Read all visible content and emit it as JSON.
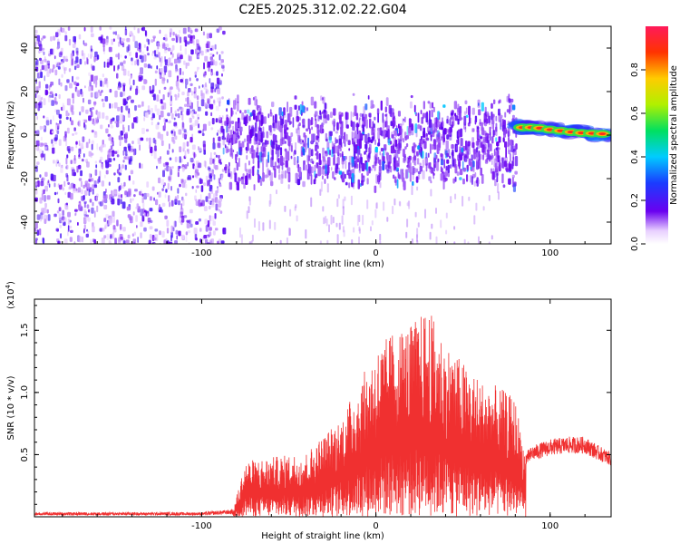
{
  "title": "C2E5.2025.312.02.22.G04",
  "colors": {
    "snr_line": "#f03030",
    "spec_low": "#d9b3ff",
    "spec_mid": "#6a00f0",
    "spec_high": "#ff1a00"
  },
  "chart_data": [
    {
      "type": "heatmap",
      "xlabel": "Height of straight line (km)",
      "ylabel": "Frequency (Hz)",
      "xlim": [
        -196,
        135
      ],
      "ylim": [
        -50,
        50
      ],
      "xticks": [
        "-100",
        "0",
        "100"
      ],
      "xtick_values": [
        -100,
        0,
        100
      ],
      "yticks": [
        "-40",
        "-20",
        "0",
        "20",
        "40"
      ],
      "ytick_values": [
        -40,
        -20,
        0,
        20,
        40
      ],
      "colorbar": {
        "label": "Normalized spectral amplitude",
        "range": [
          0,
          1
        ],
        "ticks": [
          "0.0",
          "0.2",
          "0.4",
          "0.6",
          "0.8"
        ],
        "tick_values": [
          0.0,
          0.2,
          0.4,
          0.6,
          0.8
        ]
      },
      "regions": [
        {
          "x_range": [
            -196,
            -88
          ],
          "freq_spread": 50,
          "amplitude": 0.15,
          "description_level": "noise"
        },
        {
          "x_range": [
            -88,
            80
          ],
          "freq_spread": 22,
          "amplitude": 0.25
        },
        {
          "x_range": [
            80,
            135
          ],
          "freq_center_start": 4,
          "freq_center_end": 0,
          "amplitude": 0.95
        }
      ]
    },
    {
      "type": "line",
      "xlabel": "Height of straight line (km)",
      "ylabel": "SNR (10 * v/v)",
      "scale_label": "(x10",
      "scale_exp": "4",
      "xlim": [
        -196,
        135
      ],
      "ylim": [
        0,
        1.75
      ],
      "xticks": [
        "-100",
        "0",
        "100"
      ],
      "xtick_values": [
        -100,
        0,
        100
      ],
      "yticks": [
        "0.5",
        "1.0",
        "1.5"
      ],
      "ytick_values": [
        0.5,
        1.0,
        1.5
      ],
      "series": [
        {
          "name": "SNR",
          "envelope_x": [
            -196,
            -100,
            -82,
            -75,
            -60,
            -40,
            -20,
            0,
            10,
            20,
            30,
            40,
            50,
            60,
            70,
            80,
            86,
            90,
            100,
            110,
            120,
            128,
            135
          ],
          "envelope_y": [
            0.03,
            0.03,
            0.05,
            0.45,
            0.48,
            0.52,
            0.8,
            1.35,
            1.5,
            1.55,
            1.68,
            1.4,
            1.25,
            1.1,
            1.05,
            0.95,
            0.5,
            0.55,
            0.6,
            0.62,
            0.62,
            0.55,
            0.5
          ]
        }
      ]
    }
  ]
}
